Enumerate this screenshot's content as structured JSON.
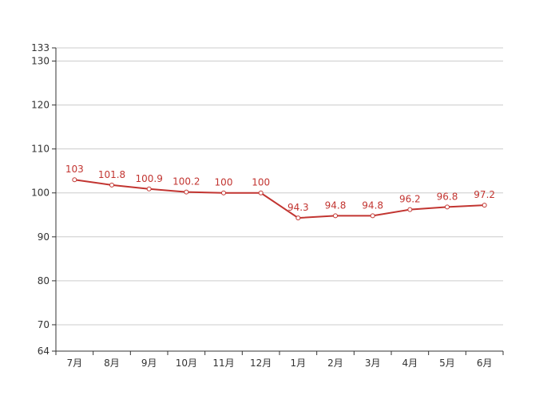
{
  "colors": {
    "series": "#c23531",
    "grid": "#cccccc",
    "axis": "#333333",
    "point_fill": "#ffffff"
  },
  "chart_data": {
    "type": "line",
    "categories": [
      "7月",
      "8月",
      "9月",
      "10月",
      "11月",
      "12月",
      "1月",
      "2月",
      "3月",
      "4月",
      "5月",
      "6月"
    ],
    "series": [
      {
        "values": [
          103,
          101.8,
          100.9,
          100.2,
          100,
          100,
          94.3,
          94.8,
          94.8,
          96.2,
          96.8,
          97.2
        ]
      }
    ],
    "y_ticks": [
      64,
      70,
      80,
      90,
      100,
      110,
      120,
      130,
      133
    ],
    "ylim": [
      64,
      133
    ],
    "grid": true,
    "data_labels": true,
    "title": "",
    "xlabel": "",
    "ylabel": ""
  }
}
